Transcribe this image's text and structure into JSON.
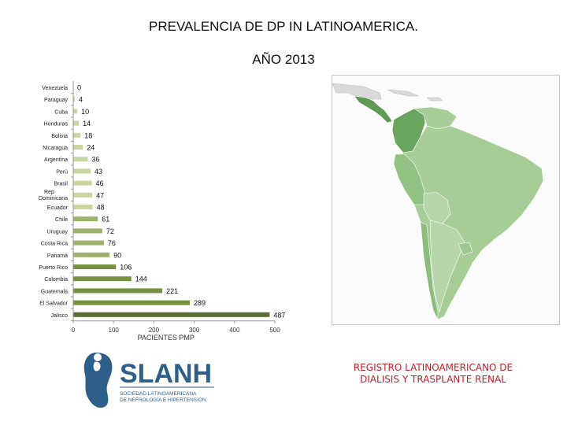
{
  "header": {
    "title": "PREVALENCIA DE DP IN LATINOAMERICA.",
    "subtitle": "AÑO 2013"
  },
  "chart_data": {
    "type": "bar",
    "orientation": "horizontal",
    "categories": [
      "Venezuela",
      "Paraguay",
      "Cuba",
      "Honduras",
      "Bolivia",
      "Nicaragua",
      "Argentina",
      "Perú",
      "Brasil",
      "Rep Dominicana",
      "Ecuador",
      "Chile",
      "Uruguay",
      "Costa Rica",
      "Panamá",
      "Puerto Rico",
      "Colombia",
      "Guatemala",
      "El Salvador",
      "Jalisco"
    ],
    "values": [
      0,
      4,
      10,
      14,
      18,
      24,
      36,
      43,
      46,
      47,
      48,
      61,
      72,
      76,
      90,
      106,
      144,
      221,
      289,
      487
    ],
    "xlabel": "PACIENTES PMP",
    "xlim": [
      0,
      500
    ],
    "xticks": [
      0,
      100,
      200,
      300,
      400,
      500
    ],
    "grid": false,
    "colors": {
      "light": "#c8d6a2",
      "medium": "#9db26a",
      "dark": "#76913f",
      "darkest": "#5a7036"
    }
  },
  "map": {
    "land_color": "#a8cc98",
    "dark_land_color": "#5f9b57",
    "mid_land_color": "#7db273",
    "grey_land_color": "#d9d9d9",
    "water_color": "#fbfbfb"
  },
  "logo": {
    "name": "SLANH",
    "tagline_1": "SOCIEDAD LATINOAMERICANA",
    "tagline_2": "DE NEFROLOGÍA E HIPERTENSIÓN",
    "color": "#2e5f8a"
  },
  "footer": {
    "registry_line1": "REGISTRO LATINOAMERICANO DE",
    "registry_line2": "DIALISIS Y TRASPLANTE RENAL"
  }
}
